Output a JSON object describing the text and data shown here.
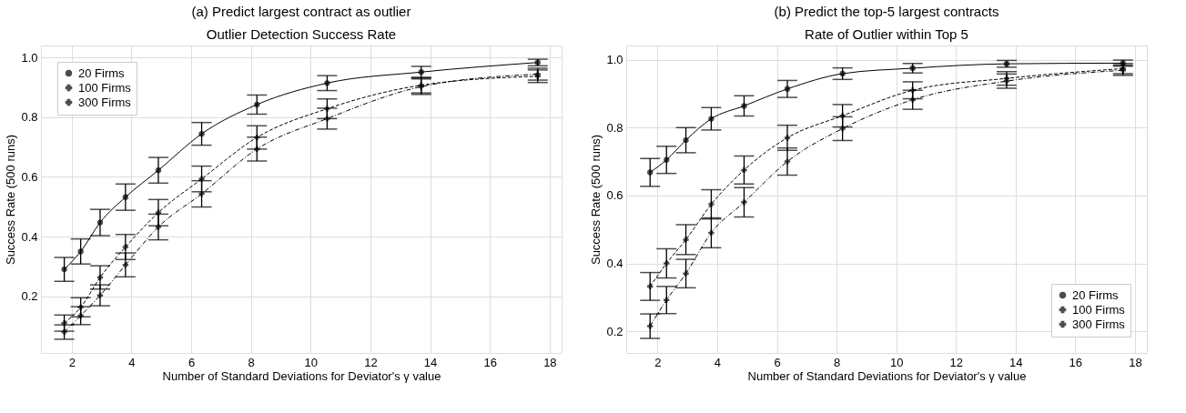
{
  "chart_data": [
    {
      "type": "line",
      "title": "(a) Predict largest contract as outlier",
      "subtitle": "Outlier Detection Success Rate",
      "xlabel": "Number of Standard Deviations for Deviator's γ value",
      "ylabel": "Success Rate (500 runs)",
      "xlim": [
        0.97,
        18.4
      ],
      "ylim": [
        0.01,
        1.04
      ],
      "xticks": [
        2,
        4,
        6,
        8,
        10,
        12,
        14,
        16,
        18
      ],
      "yticks": [
        0.2,
        0.4,
        0.6,
        0.8,
        {
          "value": 1.0,
          "label": "1.0"
        }
      ],
      "grid": true,
      "legend": "top left",
      "x": [
        1.75,
        2.3,
        2.95,
        3.8,
        4.9,
        6.35,
        8.2,
        10.55,
        13.7,
        17.6
      ],
      "series": [
        {
          "name": "20 Firms",
          "color": "#000000",
          "marker": "circle",
          "line_style": "solid",
          "values": [
            0.29,
            0.35,
            0.447,
            0.532,
            0.622,
            0.744,
            0.842,
            0.914,
            0.951,
            0.983
          ],
          "errors": [
            0.04,
            0.042,
            0.044,
            0.044,
            0.043,
            0.038,
            0.032,
            0.025,
            0.019,
            0.011
          ]
        },
        {
          "name": "100 Firms",
          "color": "#000000",
          "marker": "cross",
          "line_style": "dashed",
          "values": [
            0.11,
            0.163,
            0.263,
            0.365,
            0.48,
            0.593,
            0.732,
            0.828,
            0.907,
            0.937
          ],
          "errors": [
            0.027,
            0.032,
            0.039,
            0.042,
            0.044,
            0.043,
            0.039,
            0.033,
            0.026,
            0.021
          ]
        },
        {
          "name": "300 Firms",
          "color": "#000000",
          "marker": "cross",
          "line_style": "dotted",
          "values": [
            0.08,
            0.135,
            0.203,
            0.305,
            0.432,
            0.543,
            0.693,
            0.795,
            0.902,
            0.944
          ],
          "errors": [
            0.024,
            0.03,
            0.035,
            0.04,
            0.043,
            0.044,
            0.04,
            0.035,
            0.026,
            0.02
          ]
        }
      ]
    },
    {
      "type": "line",
      "title": "(b) Predict the top-5 largest contracts",
      "subtitle": "Rate of Outlier within Top 5",
      "xlabel": "Number of Standard Deviations for Deviator's γ value",
      "ylabel": "Success Rate (500 runs)",
      "xlim": [
        0.95,
        18.4
      ],
      "ylim": [
        0.136,
        1.042
      ],
      "xticks": [
        2,
        4,
        6,
        8,
        10,
        12,
        14,
        16,
        18
      ],
      "yticks": [
        0.2,
        0.4,
        0.6,
        0.8,
        {
          "value": 1.0,
          "label": "1.0"
        }
      ],
      "grid": true,
      "legend": "bottom right",
      "x": [
        1.75,
        2.3,
        2.95,
        3.8,
        4.9,
        6.35,
        8.2,
        10.55,
        13.7,
        17.6
      ],
      "series": [
        {
          "name": "20 Firms",
          "color": "#000000",
          "marker": "circle",
          "line_style": "solid",
          "values": [
            0.668,
            0.705,
            0.763,
            0.826,
            0.864,
            0.914,
            0.959,
            0.975,
            0.988,
            0.99
          ],
          "errors": [
            0.041,
            0.04,
            0.037,
            0.033,
            0.03,
            0.025,
            0.017,
            0.014,
            0.01,
            0.009
          ]
        },
        {
          "name": "100 Firms",
          "color": "#000000",
          "marker": "cross",
          "line_style": "dashed",
          "values": [
            0.332,
            0.4,
            0.47,
            0.574,
            0.675,
            0.77,
            0.835,
            0.91,
            0.945,
            0.974
          ],
          "errors": [
            0.041,
            0.043,
            0.044,
            0.043,
            0.041,
            0.037,
            0.033,
            0.025,
            0.02,
            0.015
          ]
        },
        {
          "name": "300 Firms",
          "color": "#000000",
          "marker": "cross",
          "line_style": "dotted",
          "values": [
            0.215,
            0.292,
            0.37,
            0.49,
            0.58,
            0.7,
            0.797,
            0.882,
            0.937,
            0.969
          ],
          "errors": [
            0.036,
            0.04,
            0.042,
            0.044,
            0.043,
            0.04,
            0.035,
            0.028,
            0.021,
            0.015
          ]
        }
      ]
    }
  ]
}
